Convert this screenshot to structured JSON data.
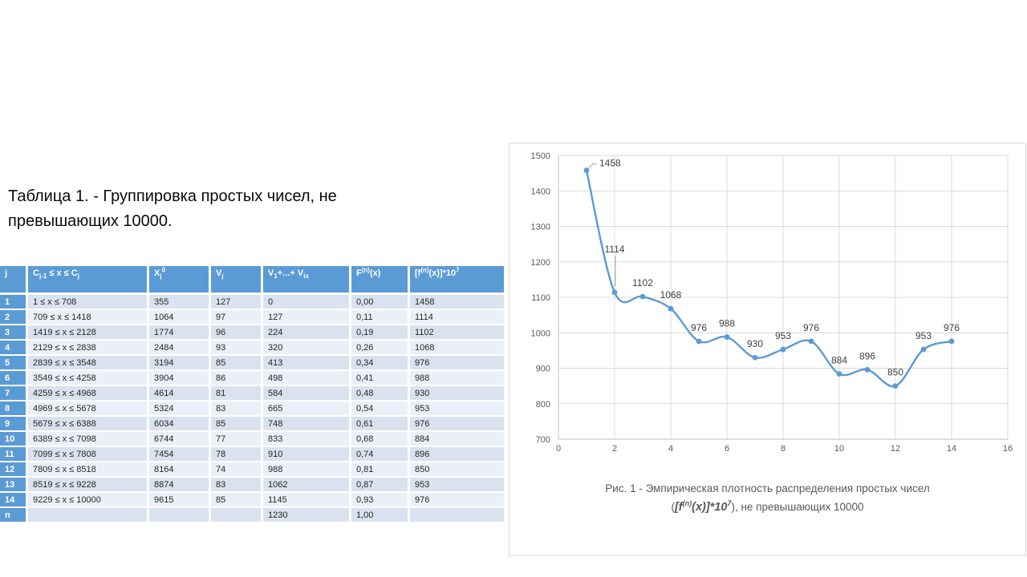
{
  "title": "Таблица 1. - Группировка простых чисел, не превышающих 10000.",
  "theme": {
    "header-blue": "#5B9BD5",
    "band-dark": "#D9E2EE",
    "band-light": "#EBF0F8",
    "chart-border": "#D9D9D9",
    "caption-gray": "#595959"
  },
  "table": {
    "headers": [
      "j",
      "C_{j-1} ≤ x ≤ C_{j}",
      "X_{j}^{0}",
      "V_{j}",
      "V_{1}+...+ V_{ix}",
      "F^{(n)}(x)",
      "[f^{(n)}(x)]*10^{7}"
    ],
    "rows": [
      [
        "1",
        "1 ≤ x ≤ 708",
        "355",
        "127",
        "0",
        "0,00",
        "1458"
      ],
      [
        "2",
        "709 ≤ x ≤ 1418",
        "1064",
        "97",
        "127",
        "0,11",
        "1114"
      ],
      [
        "3",
        "1419 ≤ x ≤ 2128",
        "1774",
        "96",
        "224",
        "0,19",
        "1102"
      ],
      [
        "4",
        "2129 ≤ x ≤ 2838",
        "2484",
        "93",
        "320",
        "0,26",
        "1068"
      ],
      [
        "5",
        "2839 ≤ x ≤ 3548",
        "3194",
        "85",
        "413",
        "0,34",
        "976"
      ],
      [
        "6",
        "3549 ≤ x ≤ 4258",
        "3904",
        "86",
        "498",
        "0,41",
        "988"
      ],
      [
        "7",
        "4259 ≤ x ≤ 4968",
        "4614",
        "81",
        "584",
        "0,48",
        "930"
      ],
      [
        "8",
        "4969 ≤ x ≤ 5678",
        "5324",
        "83",
        "665",
        "0,54",
        "953"
      ],
      [
        "9",
        "5679 ≤ x ≤ 6388",
        "6034",
        "85",
        "748",
        "0,61",
        "976"
      ],
      [
        "10",
        "6389 ≤ x ≤ 7098",
        "6744",
        "77",
        "833",
        "0,68",
        "884"
      ],
      [
        "11",
        "7099 ≤ x ≤ 7808",
        "7454",
        "78",
        "910",
        "0,74",
        "896"
      ],
      [
        "12",
        "7809 ≤ x ≤ 8518",
        "8164",
        "74",
        "988",
        "0,81",
        "850"
      ],
      [
        "13",
        "8519 ≤ x ≤ 9228",
        "8874",
        "83",
        "1062",
        "0,87",
        "953"
      ],
      [
        "14",
        "9229 ≤ x ≤ 10000",
        "9615",
        "85",
        "1145",
        "0,93",
        "976"
      ],
      [
        "n",
        "",
        "",
        "",
        "1230",
        "1,00",
        ""
      ]
    ]
  },
  "chart_data": {
    "type": "line",
    "title": "",
    "xlabel": "",
    "ylabel": "",
    "x": [
      1,
      2,
      3,
      4,
      5,
      6,
      7,
      8,
      9,
      10,
      11,
      12,
      13,
      14
    ],
    "values": [
      1458,
      1114,
      1102,
      1068,
      976,
      988,
      930,
      953,
      976,
      884,
      896,
      850,
      953,
      976
    ],
    "xlim": [
      0,
      16
    ],
    "ylim": [
      700,
      1500
    ],
    "xtick": 2,
    "ytick": 100,
    "grid": true,
    "smooth": true,
    "marker": "circle",
    "legend": "none",
    "data_labels": true,
    "colors": {
      "line": "#5B9BD5",
      "grid": "#D9D9D9",
      "axis": "#BFBFBF",
      "leader": "#A6A6A6",
      "tick_text": "#595959",
      "label_text": "#404040"
    },
    "label_overrides": {
      "0": {
        "dx": 16,
        "dy": -5,
        "anchor": "start",
        "leader": "h"
      },
      "1": {
        "dy": -50,
        "leader": "v"
      }
    }
  },
  "caption": {
    "line1": "Рис. 1 - Эмпирическая плотность распределения простых чисел",
    "line2_prefix": "(",
    "line2_formula": "[f^{(n)}(x)]*10^{7}",
    "line2_suffix": "), не превышающих 10000"
  }
}
